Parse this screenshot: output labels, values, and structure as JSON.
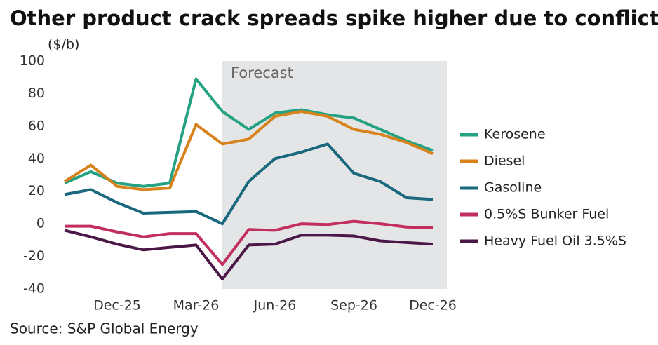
{
  "chart_data": {
    "type": "line",
    "title": "Other product crack spreads spike higher due to conflict",
    "y_label": "($/b)",
    "source": "Source: S&P Global Energy",
    "annotation": {
      "text": "Forecast",
      "x": 6
    },
    "categories": [
      null,
      null,
      "Dec-25",
      null,
      null,
      "Mar-26",
      null,
      null,
      "Jun-26",
      null,
      null,
      "Sep-26",
      null,
      null,
      "Dec-26"
    ],
    "series": [
      {
        "name": "Kerosene",
        "color": "#24a282",
        "values": [
          25,
          32,
          25,
          23,
          25,
          89,
          69,
          58,
          68,
          70,
          67,
          65,
          58,
          51,
          45
        ]
      },
      {
        "name": "Diesel",
        "color": "#d8821c",
        "values": [
          26,
          36,
          23,
          21,
          22,
          61,
          49,
          52,
          66,
          69,
          66,
          58,
          55,
          50,
          43
        ]
      },
      {
        "name": "Gasoline",
        "color": "#19687d",
        "values": [
          18,
          21,
          13,
          6.5,
          7,
          7.5,
          0,
          26,
          40,
          44,
          49,
          31,
          26,
          16,
          15
        ]
      },
      {
        "name": "0.5%S Bunker Fuel",
        "color": "#c22f5e",
        "values": [
          -1.5,
          -1.5,
          -5,
          -8,
          -6,
          -6,
          -25,
          -3.5,
          -4,
          0,
          -0.5,
          1.5,
          0,
          -2,
          -2.5
        ]
      },
      {
        "name": "Heavy Fuel Oil 3.5%S",
        "color": "#4a1747",
        "values": [
          -4,
          -8,
          -12.5,
          -16,
          -14.5,
          -13,
          -34,
          -13,
          -12.5,
          -7,
          -7,
          -7.5,
          -10.5,
          -11.5,
          -12.5
        ]
      }
    ],
    "ylim": [
      -40,
      100
    ],
    "yticks": [
      -40,
      -20,
      0,
      20,
      40,
      60,
      80,
      100
    ],
    "grid": false
  }
}
